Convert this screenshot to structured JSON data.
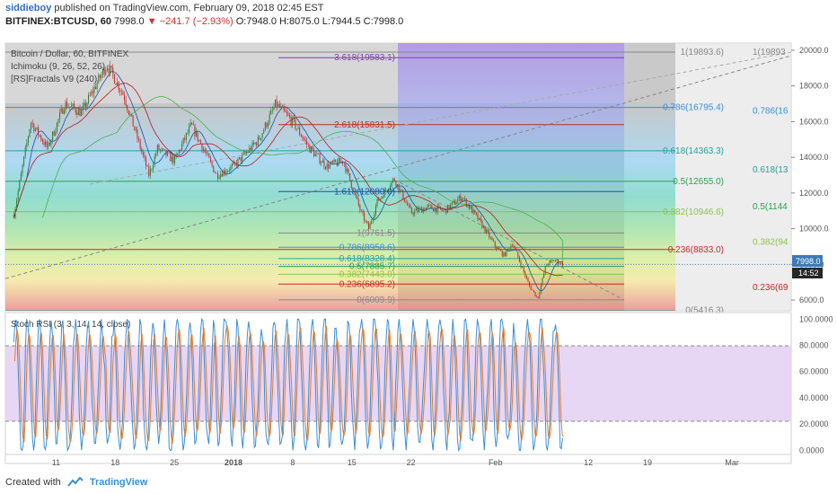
{
  "header": {
    "author": "siddieboy",
    "published_text": "published on TradingView.com, February 09, 2018 02:45 EST",
    "symbol": "BITFINEX:BTCUSD, 60",
    "last": "7998.0",
    "change": "−241.7 (−2.93%)",
    "open": "O:7948.0",
    "high": "H:8075.0",
    "low": "L:7944.5",
    "close": "C:7998.0"
  },
  "legend": {
    "pair": "Bitcoin / Dollar, 60, BITFINEX",
    "ichimoku": "Ichimoku (9, 26, 52, 26)",
    "fractals": "[RS]Fractals V9 (240)",
    "stoch": "Stoch RSI (3, 3, 14, 14, close)"
  },
  "price_badge": {
    "value": "7998.0",
    "time": "14:52"
  },
  "footer": {
    "created_with": "Created with",
    "brand": "TradingView"
  },
  "colors": {
    "candle_up": "#2e7d32",
    "candle_down": "#c62828",
    "stoch_k": "#3a8fd6",
    "stoch_d": "#e87d2a"
  },
  "chart_data": [
    {
      "type": "candlestick",
      "timeframe": "60",
      "x_ticks": [
        "11",
        "18",
        "25",
        "2018",
        "8",
        "15",
        "22",
        "Feb",
        "12",
        "19",
        "Mar"
      ],
      "y_ticks": [
        6000,
        8000,
        10000,
        12000,
        14000,
        16000,
        18000,
        20000
      ],
      "y_tick_labels": [
        "6000.0",
        "8000.0",
        "10000.0",
        "12000.0",
        "14000.0",
        "16000.0",
        "18000.0",
        "20000.0"
      ],
      "ylim": [
        5400,
        20400
      ],
      "last_price": 7998.0,
      "price_path": [
        {
          "x": "Dec 06",
          "y": 10800
        },
        {
          "x": "Dec 08",
          "y": 16000
        },
        {
          "x": "Dec 10",
          "y": 14500
        },
        {
          "x": "Dec 12",
          "y": 17000
        },
        {
          "x": "Dec 14",
          "y": 16500
        },
        {
          "x": "Dec 17",
          "y": 19200
        },
        {
          "x": "Dec 19",
          "y": 17500
        },
        {
          "x": "Dec 22",
          "y": 13000
        },
        {
          "x": "Dec 23",
          "y": 14500
        },
        {
          "x": "Dec 25",
          "y": 13800
        },
        {
          "x": "Dec 27",
          "y": 15800
        },
        {
          "x": "Dec 30",
          "y": 13000
        },
        {
          "x": "Jan 01",
          "y": 13500
        },
        {
          "x": "Jan 04",
          "y": 15000
        },
        {
          "x": "Jan 06",
          "y": 17000
        },
        {
          "x": "Jan 08",
          "y": 16000
        },
        {
          "x": "Jan 10",
          "y": 14500
        },
        {
          "x": "Jan 12",
          "y": 13500
        },
        {
          "x": "Jan 14",
          "y": 13800
        },
        {
          "x": "Jan 16",
          "y": 11000
        },
        {
          "x": "Jan 17",
          "y": 10000
        },
        {
          "x": "Jan 18",
          "y": 11500
        },
        {
          "x": "Jan 20",
          "y": 12800
        },
        {
          "x": "Jan 22",
          "y": 10900
        },
        {
          "x": "Jan 24",
          "y": 11200
        },
        {
          "x": "Jan 26",
          "y": 11000
        },
        {
          "x": "Jan 28",
          "y": 11800
        },
        {
          "x": "Jan 30",
          "y": 10500
        },
        {
          "x": "Feb 01",
          "y": 9000
        },
        {
          "x": "Feb 02",
          "y": 8500
        },
        {
          "x": "Feb 03",
          "y": 9200
        },
        {
          "x": "Feb 05",
          "y": 6800
        },
        {
          "x": "Feb 06",
          "y": 6100
        },
        {
          "x": "Feb 07",
          "y": 8000
        },
        {
          "x": "Feb 08",
          "y": 8240
        },
        {
          "x": "Feb 09",
          "y": 7998
        }
      ],
      "fib_sets": [
        {
          "name": "retracement-1",
          "levels": [
            {
              "ratio": "3.618",
              "price": 19583.1,
              "label": "3.618(19583.1)"
            },
            {
              "ratio": "2.618",
              "price": 15831.5,
              "label": "2.618(15831.5)"
            },
            {
              "ratio": "1.618",
              "price": 12080.0,
              "label": "1.618(12080.0)"
            },
            {
              "ratio": "1",
              "price": 9761.5,
              "label": "1(9761.5)"
            },
            {
              "ratio": "0.786",
              "price": 8958.6,
              "label": "0.786(8958.6)"
            },
            {
              "ratio": "0.618",
              "price": 8328.4,
              "label": "0.618(8328.4)"
            },
            {
              "ratio": "0.5",
              "price": 7885.7,
              "label": "0.5(7885.7)"
            },
            {
              "ratio": "0.382",
              "price": 7443.0,
              "label": "0.382(7443.0)"
            },
            {
              "ratio": "0.236",
              "price": 6895.2,
              "label": "0.236(6895.2)"
            },
            {
              "ratio": "0",
              "price": 6009.9,
              "label": "0(6009.9)"
            }
          ]
        },
        {
          "name": "retracement-2",
          "levels": [
            {
              "ratio": "1",
              "price": 19893.6,
              "label": "1(19893.6)"
            },
            {
              "ratio": "0.786",
              "price": 16795.4,
              "label": "0.786(16795.4)"
            },
            {
              "ratio": "0.618",
              "price": 14363.3,
              "label": "0.618(14363.3)"
            },
            {
              "ratio": "0.5",
              "price": 12655.0,
              "label": "0.5(12655.0)"
            },
            {
              "ratio": "0.382",
              "price": 10946.6,
              "label": "0.382(10946.6)"
            },
            {
              "ratio": "0.236",
              "price": 8833.0,
              "label": "0.236(8833.0)"
            },
            {
              "ratio": "0",
              "price": 5416.3,
              "label": "0(5416.3)"
            }
          ]
        }
      ],
      "fib_labels_right": [
        "1(19893",
        "0.786(16",
        "0.618(13",
        "0.5(1144",
        "0.382(94",
        "0.236(69"
      ]
    },
    {
      "type": "line",
      "title": "Stoch RSI (3, 3, 14, 14, close)",
      "ylim": [
        -10,
        105
      ],
      "y_ticks": [
        0,
        20,
        40,
        60,
        80,
        100
      ],
      "y_tick_labels": [
        "0.0000",
        "20.0000",
        "40.0000",
        "60.0000",
        "80.0000",
        "100.0000"
      ],
      "bands": {
        "upper": 80,
        "lower": 20
      },
      "series": [
        {
          "name": "K"
        },
        {
          "name": "D"
        }
      ]
    }
  ]
}
